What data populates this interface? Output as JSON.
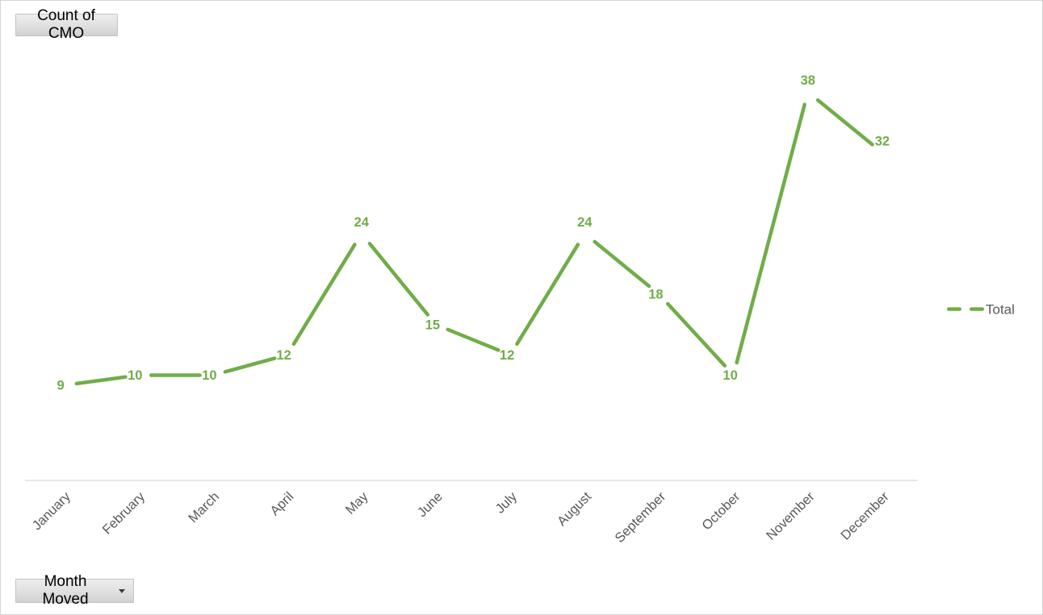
{
  "field_buttons": {
    "values_button": "Count of CMO",
    "axis_button": "Month Moved"
  },
  "legend": {
    "series_label": "Total",
    "position": "right"
  },
  "colors": {
    "series_green": "#70AD47",
    "data_label_green": "#70AD47",
    "axis_text_gray": "#595959",
    "legend_text_gray": "#595959",
    "axis_line_gray": "#d9d9d9"
  },
  "chart_data": {
    "type": "line",
    "title": "Count of CMO",
    "xlabel": "Month Moved",
    "ylabel": "",
    "categories": [
      "January",
      "February",
      "March",
      "April",
      "May",
      "June",
      "July",
      "August",
      "September",
      "October",
      "November",
      "December"
    ],
    "series": [
      {
        "name": "Total",
        "values": [
          9,
          10,
          10,
          12,
          24,
          15,
          12,
          24,
          18,
          10,
          38,
          32
        ]
      }
    ],
    "ylim": [
      0,
      40
    ],
    "grid": false,
    "y_axis_visible": false,
    "legend_position": "right",
    "line_style": "dashed",
    "data_labels": true,
    "label_positions": [
      "center",
      "center",
      "center",
      "center",
      "above",
      "center",
      "center",
      "above",
      "center",
      "center",
      "above",
      "above"
    ]
  }
}
